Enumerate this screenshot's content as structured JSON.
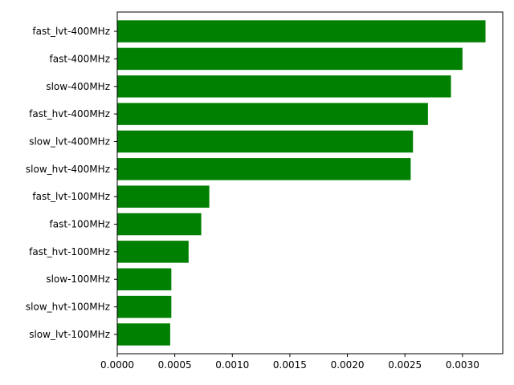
{
  "chart_data": {
    "type": "bar",
    "orientation": "horizontal",
    "title": "",
    "xlabel": "",
    "ylabel": "",
    "categories": [
      "fast_lvt-400MHz",
      "fast-400MHz",
      "slow-400MHz",
      "fast_hvt-400MHz",
      "slow_lvt-400MHz",
      "slow_hvt-400MHz",
      "fast_lvt-100MHz",
      "fast-100MHz",
      "fast_hvt-100MHz",
      "slow-100MHz",
      "slow_hvt-100MHz",
      "slow_lvt-100MHz"
    ],
    "values": [
      0.0032,
      0.003,
      0.0029,
      0.0027,
      0.00257,
      0.00255,
      0.0008,
      0.00073,
      0.00062,
      0.00047,
      0.00047,
      0.00046
    ],
    "xlim": [
      0,
      0.00335
    ],
    "xticks": [
      0,
      0.0005,
      0.001,
      0.0015,
      0.002,
      0.0025,
      0.003
    ],
    "xtick_labels": [
      "0.0000",
      "0.0005",
      "0.0010",
      "0.0015",
      "0.0020",
      "0.0025",
      "0.0030"
    ],
    "bar_color": "#008000",
    "grid": false,
    "legend": "none"
  }
}
